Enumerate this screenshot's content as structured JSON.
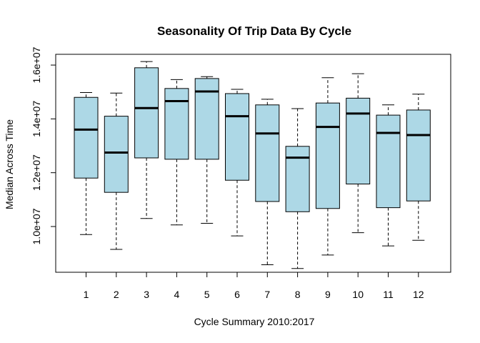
{
  "chart_data": {
    "type": "boxplot",
    "title": "Seasonality Of Trip Data By Cycle",
    "xlabel": "Cycle Summary 2010:2017",
    "ylabel": "Median Across Time",
    "categories": [
      "1",
      "2",
      "3",
      "4",
      "5",
      "6",
      "7",
      "8",
      "9",
      "10",
      "11",
      "12"
    ],
    "yticks": [
      10000000,
      12000000,
      14000000,
      16000000
    ],
    "ytick_labels": [
      "1.0e+07",
      "1.2e+07",
      "1.4e+07",
      "1.6e+07"
    ],
    "ylim": [
      8300000,
      16400000
    ],
    "box_color": "#ADD8E6",
    "boxes": [
      {
        "min": 9700000,
        "q1": 11800000,
        "median": 13600000,
        "q3": 14800000,
        "max": 14980000
      },
      {
        "min": 9150000,
        "q1": 11270000,
        "median": 12750000,
        "q3": 14100000,
        "max": 14960000
      },
      {
        "min": 10300000,
        "q1": 12550000,
        "median": 14400000,
        "q3": 15900000,
        "max": 16130000
      },
      {
        "min": 10060000,
        "q1": 12500000,
        "median": 14660000,
        "q3": 15130000,
        "max": 15460000
      },
      {
        "min": 10120000,
        "q1": 12500000,
        "median": 15020000,
        "q3": 15500000,
        "max": 15570000
      },
      {
        "min": 9650000,
        "q1": 11720000,
        "median": 14100000,
        "q3": 14940000,
        "max": 15100000
      },
      {
        "min": 8580000,
        "q1": 10930000,
        "median": 13460000,
        "q3": 14520000,
        "max": 14730000
      },
      {
        "min": 8440000,
        "q1": 10550000,
        "median": 12560000,
        "q3": 12980000,
        "max": 14380000
      },
      {
        "min": 8940000,
        "q1": 10670000,
        "median": 13700000,
        "q3": 14590000,
        "max": 15530000
      },
      {
        "min": 9770000,
        "q1": 11580000,
        "median": 14200000,
        "q3": 14770000,
        "max": 15680000
      },
      {
        "min": 9280000,
        "q1": 10700000,
        "median": 13480000,
        "q3": 14140000,
        "max": 14520000
      },
      {
        "min": 9490000,
        "q1": 10950000,
        "median": 13400000,
        "q3": 14330000,
        "max": 14920000
      }
    ]
  }
}
